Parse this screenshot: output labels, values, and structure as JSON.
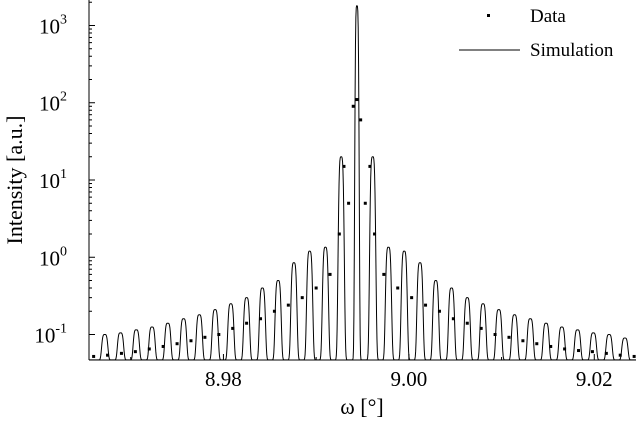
{
  "chart_data": {
    "type": "line",
    "xlabel": "ω [°]",
    "ylabel": "Intensity [a.u.]",
    "xlim": [
      8.9655,
      9.0245
    ],
    "ylim_log10": [
      -1.33,
      3.33
    ],
    "yscale": "log",
    "x_ticks": [
      {
        "value": 8.98,
        "label": "8.98"
      },
      {
        "value": 9.0,
        "label": "9.00"
      },
      {
        "value": 9.02,
        "label": "9.02"
      }
    ],
    "y_ticks": [
      {
        "exp": -1,
        "base": "10",
        "sup": "-1"
      },
      {
        "exp": 0,
        "base": "10",
        "sup": "0"
      },
      {
        "exp": 1,
        "base": "10",
        "sup": "1"
      },
      {
        "exp": 2,
        "base": "10",
        "sup": "2"
      },
      {
        "exp": 3,
        "base": "10",
        "sup": "3"
      }
    ],
    "legend": {
      "placement": "top-right",
      "entries": [
        "Data",
        "Simulation"
      ]
    },
    "grid": false,
    "series": [
      {
        "name": "Simulation",
        "style": "solid-line",
        "center": 8.9944,
        "fringe_period": 0.0017,
        "peak_values": [
          [
            8.9944,
            1800
          ],
          [
            8.9927,
            20
          ],
          [
            8.9961,
            20
          ],
          [
            8.991,
            1.35
          ],
          [
            8.9978,
            1.35
          ],
          [
            8.9893,
            1.2
          ],
          [
            8.9995,
            1.2
          ],
          [
            8.9876,
            0.85
          ],
          [
            9.0012,
            0.85
          ],
          [
            8.9859,
            0.5
          ],
          [
            9.0029,
            0.5
          ],
          [
            8.9842,
            0.4
          ],
          [
            9.0046,
            0.4
          ],
          [
            8.9825,
            0.3
          ],
          [
            9.0063,
            0.3
          ],
          [
            8.9808,
            0.25
          ],
          [
            9.008,
            0.25
          ],
          [
            8.9791,
            0.21
          ],
          [
            9.0097,
            0.21
          ],
          [
            8.9774,
            0.18
          ],
          [
            9.0114,
            0.18
          ],
          [
            8.9757,
            0.16
          ],
          [
            9.0131,
            0.16
          ],
          [
            8.974,
            0.14
          ],
          [
            9.0148,
            0.14
          ],
          [
            8.9723,
            0.125
          ],
          [
            9.0165,
            0.125
          ],
          [
            8.9706,
            0.115
          ],
          [
            9.0182,
            0.115
          ],
          [
            8.9689,
            0.105
          ],
          [
            9.0199,
            0.105
          ],
          [
            8.9672,
            0.1
          ],
          [
            9.0216,
            0.1
          ],
          [
            9.0233,
            0.09
          ]
        ],
        "trough_value": 0.047
      },
      {
        "name": "Data",
        "style": "dots",
        "points": [
          [
            8.966,
            0.052
          ],
          [
            8.9675,
            0.054
          ],
          [
            8.969,
            0.057
          ],
          [
            8.9705,
            0.06
          ],
          [
            8.972,
            0.065
          ],
          [
            8.9735,
            0.07
          ],
          [
            8.975,
            0.076
          ],
          [
            8.9765,
            0.083
          ],
          [
            8.978,
            0.092
          ],
          [
            8.9795,
            0.1
          ],
          [
            8.981,
            0.12
          ],
          [
            8.9825,
            0.14
          ],
          [
            8.984,
            0.16
          ],
          [
            8.9855,
            0.2
          ],
          [
            8.987,
            0.24
          ],
          [
            8.9885,
            0.3
          ],
          [
            8.99,
            0.4
          ],
          [
            8.9915,
            0.6
          ],
          [
            8.9925,
            2.0
          ],
          [
            8.993,
            15
          ],
          [
            8.9935,
            5.0
          ],
          [
            8.994,
            90
          ],
          [
            8.9944,
            110
          ],
          [
            8.9948,
            60
          ],
          [
            8.9953,
            5.0
          ],
          [
            8.9958,
            15
          ],
          [
            8.9963,
            2.0
          ],
          [
            8.9973,
            0.6
          ],
          [
            8.9988,
            0.4
          ],
          [
            9.0003,
            0.3
          ],
          [
            9.0018,
            0.24
          ],
          [
            9.0033,
            0.2
          ],
          [
            9.0048,
            0.16
          ],
          [
            9.0063,
            0.14
          ],
          [
            9.0078,
            0.12
          ],
          [
            9.0093,
            0.1
          ],
          [
            9.0108,
            0.092
          ],
          [
            9.0123,
            0.083
          ],
          [
            9.0138,
            0.076
          ],
          [
            9.0153,
            0.07
          ],
          [
            9.0168,
            0.065
          ],
          [
            9.0183,
            0.062
          ],
          [
            9.0198,
            0.06
          ],
          [
            9.0213,
            0.057
          ],
          [
            9.0228,
            0.054
          ],
          [
            9.0243,
            0.052
          ]
        ]
      }
    ]
  }
}
